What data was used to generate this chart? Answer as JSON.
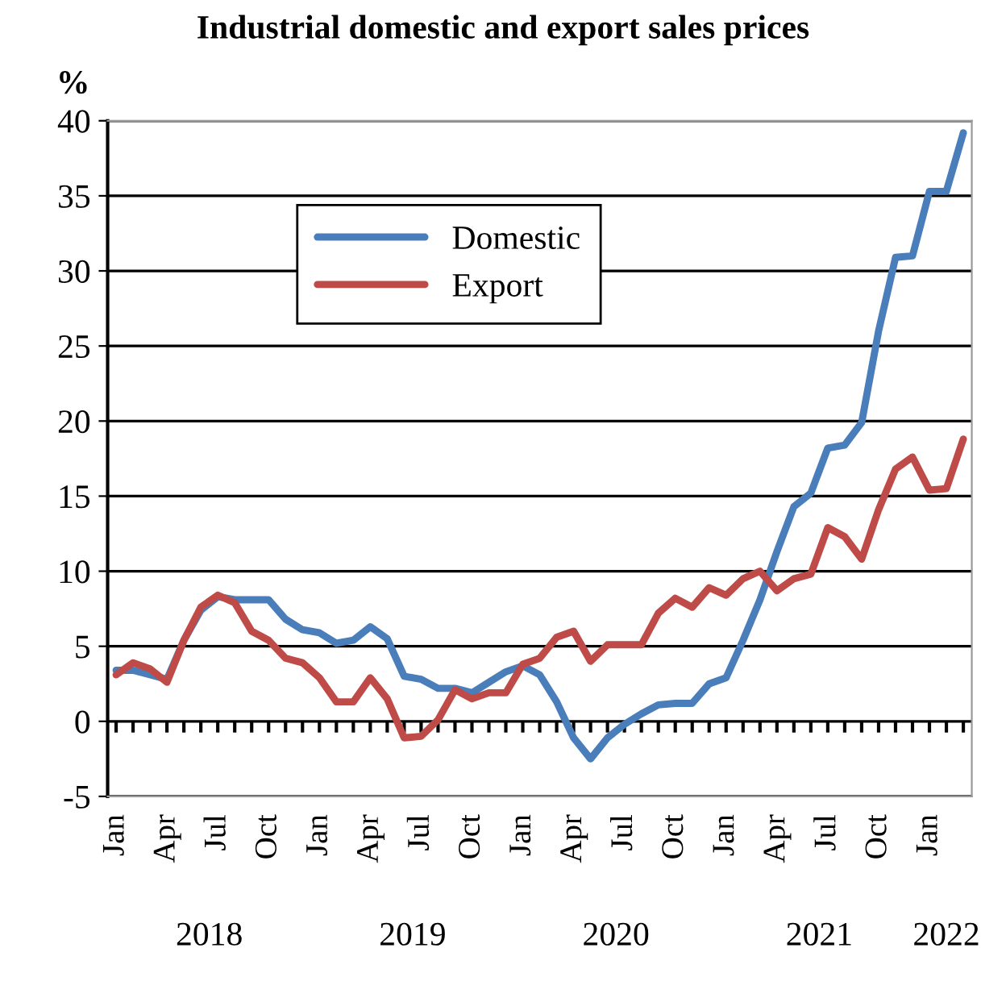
{
  "chart_data": {
    "type": "line",
    "title": "Industrial domestic and export sales prices",
    "ylabel": "%",
    "categories": [
      "Jan",
      null,
      null,
      "Apr",
      null,
      null,
      "Jul",
      null,
      null,
      "Oct",
      null,
      null,
      "Jan",
      null,
      null,
      "Apr",
      null,
      null,
      "Jul",
      null,
      null,
      "Oct",
      null,
      null,
      "Jan",
      null,
      null,
      "Apr",
      null,
      null,
      "Jul",
      null,
      null,
      "Oct",
      null,
      null,
      "Jan",
      null,
      null,
      "Apr",
      null,
      null,
      "Jul",
      null,
      null,
      "Oct",
      null,
      null,
      "Jan",
      null,
      null
    ],
    "series": [
      {
        "name": "Domestic",
        "color": "#4a7ebb",
        "values": [
          3.4,
          3.4,
          3.1,
          2.8,
          5.4,
          7.4,
          8.3,
          8.1,
          8.1,
          8.1,
          6.8,
          6.1,
          5.9,
          5.2,
          5.4,
          6.3,
          5.5,
          3.0,
          2.8,
          2.2,
          2.2,
          1.9,
          2.6,
          3.3,
          3.7,
          3.1,
          1.3,
          -1.1,
          -2.5,
          -1.1,
          -0.2,
          0.5,
          1.1,
          1.2,
          1.2,
          2.5,
          2.9,
          5.4,
          8.1,
          11.3,
          14.3,
          15.2,
          18.2,
          18.4,
          19.9,
          26.0,
          30.9,
          31.0,
          35.3,
          35.3,
          39.2
        ]
      },
      {
        "name": "Export",
        "color": "#be4b48",
        "values": [
          3.1,
          3.9,
          3.5,
          2.6,
          5.4,
          7.6,
          8.4,
          7.9,
          6.0,
          5.4,
          4.2,
          3.9,
          2.9,
          1.3,
          1.3,
          2.9,
          1.5,
          -1.1,
          -1.0,
          0.1,
          2.1,
          1.5,
          1.9,
          1.9,
          3.8,
          4.2,
          5.6,
          6.0,
          4.0,
          5.1,
          5.1,
          5.1,
          7.2,
          8.2,
          7.6,
          8.9,
          8.4,
          9.5,
          10.0,
          8.7,
          9.5,
          9.8,
          12.9,
          12.3,
          10.8,
          14.1,
          16.8,
          17.6,
          15.4,
          15.5,
          18.8
        ]
      }
    ],
    "ylim": [
      -5,
      40
    ],
    "yticks": [
      -5,
      0,
      5,
      10,
      15,
      20,
      25,
      30,
      35,
      40
    ],
    "grid": "y",
    "legend": "top left",
    "marker": "none",
    "line_style": "solid",
    "annotations": [
      "2018",
      "2019",
      "2020",
      "2021",
      "2022"
    ]
  }
}
